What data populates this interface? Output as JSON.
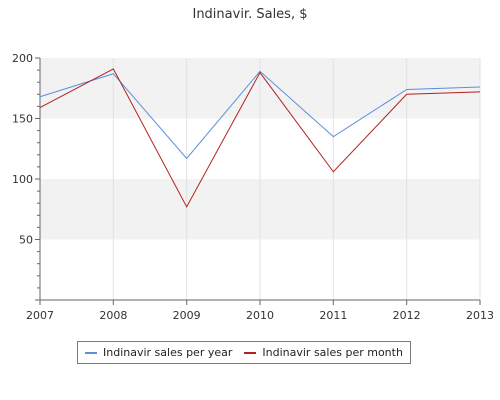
{
  "chart_data": {
    "type": "line",
    "title": "Indinavir. Sales, $",
    "x": [
      "2007",
      "2008",
      "2009",
      "2010",
      "2011",
      "2012",
      "2013"
    ],
    "ylim": [
      0,
      200
    ],
    "yticks": [
      50,
      100,
      150,
      200
    ],
    "grid": true,
    "legend_position": "bottom",
    "series": [
      {
        "name": "Indinavir sales per year",
        "color": "#5b8fd9",
        "values": [
          168,
          187,
          117,
          189,
          135,
          174,
          176
        ]
      },
      {
        "name": "Indinavir sales per month",
        "color": "#b22222",
        "values": [
          159,
          191,
          77,
          188,
          106,
          170,
          172
        ]
      }
    ]
  }
}
